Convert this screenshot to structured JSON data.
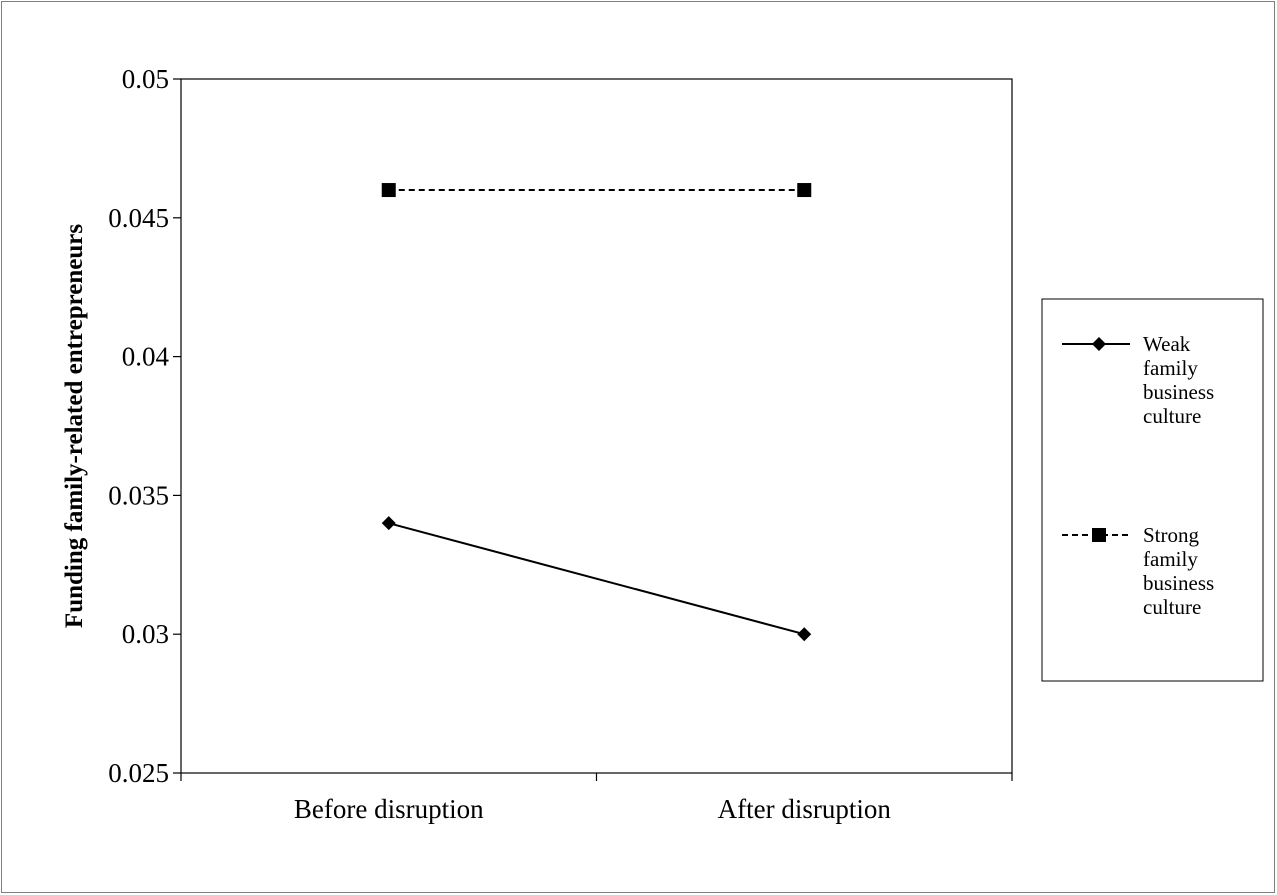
{
  "chart_data": {
    "type": "line",
    "title": "",
    "xlabel": "",
    "ylabel": "Funding family-related entrepreneurs",
    "categories": [
      "Before disruption",
      "After disruption"
    ],
    "ylim": [
      0.025,
      0.05
    ],
    "yticks": [
      "0.025",
      "0.03",
      "0.035",
      "0.04",
      "0.045",
      "0.05"
    ],
    "grid": false,
    "legend_position": "right",
    "series": [
      {
        "name": "Weak family business culture",
        "legend_lines": [
          "Weak",
          "family",
          "business",
          "culture"
        ],
        "values": [
          0.034,
          0.03
        ],
        "line_style": "solid",
        "marker": "diamond",
        "color": "#000000"
      },
      {
        "name": "Strong family business culture",
        "legend_lines": [
          "Strong",
          "family",
          "business",
          "culture"
        ],
        "values": [
          0.046,
          0.046
        ],
        "line_style": "dashed",
        "marker": "square",
        "color": "#000000"
      }
    ]
  }
}
